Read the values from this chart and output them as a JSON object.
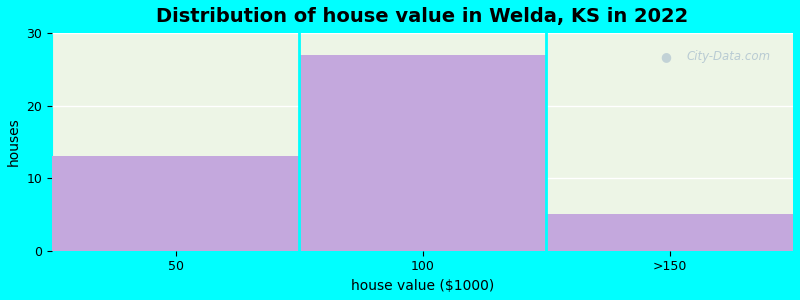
{
  "title": "Distribution of house value in Welda, KS in 2022",
  "xlabel": "house value ($1000)",
  "ylabel": "houses",
  "categories": [
    "50",
    "100",
    ">150"
  ],
  "values": [
    13,
    27,
    5
  ],
  "bar_color": "#c4a8dd",
  "bg_color": "#00ffff",
  "plot_bg_top": "#eef5e8",
  "plot_bg_bottom": "#e8f2e0",
  "ylim": [
    0,
    30
  ],
  "yticks": [
    0,
    10,
    20,
    30
  ],
  "title_fontsize": 14,
  "label_fontsize": 10,
  "tick_fontsize": 9,
  "grid_color": "#ffffff",
  "watermark": "City-Data.com"
}
